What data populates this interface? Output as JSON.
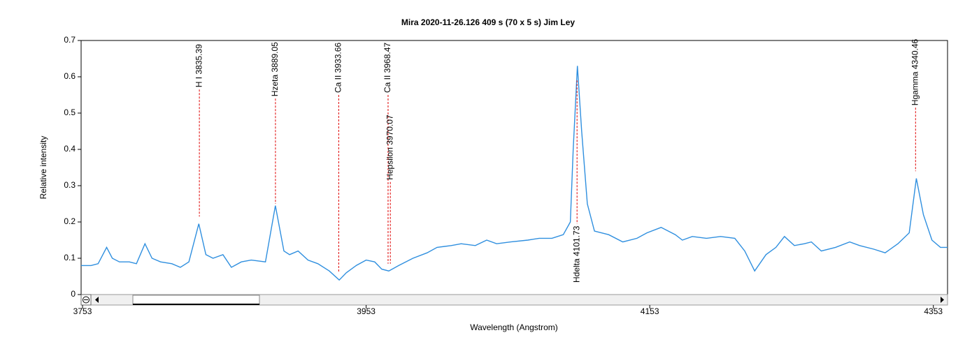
{
  "chart_data": {
    "type": "line",
    "title": "Mira   2020-11-26.126   409 s (70 x 5 s)   Jim Ley",
    "x_label": "Wavelength (Angstrom)",
    "y_label": "Relative intensity",
    "x": [
      3752,
      3759,
      3764,
      3770,
      3774,
      3779,
      3786,
      3791,
      3797,
      3802,
      3808,
      3816,
      3822,
      3828,
      3835,
      3840,
      3845,
      3852,
      3858,
      3865,
      3872,
      3882,
      3889,
      3895,
      3899,
      3905,
      3912,
      3919,
      3927,
      3934,
      3939,
      3946,
      3953,
      3959,
      3964,
      3969,
      3976,
      3986,
      3996,
      4003,
      4013,
      4020,
      4030,
      4038,
      4045,
      4055,
      4067,
      4075,
      4084,
      4092,
      4097,
      4099,
      4102,
      4105,
      4109,
      4114,
      4124,
      4134,
      4144,
      4151,
      4161,
      4171,
      4176,
      4183,
      4193,
      4203,
      4213,
      4220,
      4227,
      4235,
      4242,
      4248,
      4255,
      4262,
      4267,
      4274,
      4284,
      4294,
      4301,
      4311,
      4319,
      4328,
      4336,
      4341,
      4346,
      4352,
      4358,
      4363
    ],
    "series": [
      {
        "color": "#2f8fdf",
        "values": [
          0.08,
          0.08,
          0.085,
          0.13,
          0.1,
          0.09,
          0.09,
          0.085,
          0.14,
          0.1,
          0.09,
          0.085,
          0.075,
          0.09,
          0.195,
          0.11,
          0.1,
          0.11,
          0.075,
          0.09,
          0.095,
          0.09,
          0.245,
          0.12,
          0.11,
          0.12,
          0.095,
          0.085,
          0.065,
          0.04,
          0.06,
          0.08,
          0.095,
          0.09,
          0.07,
          0.065,
          0.08,
          0.1,
          0.115,
          0.13,
          0.135,
          0.14,
          0.135,
          0.15,
          0.14,
          0.145,
          0.15,
          0.155,
          0.155,
          0.165,
          0.2,
          0.4,
          0.63,
          0.45,
          0.25,
          0.175,
          0.165,
          0.145,
          0.155,
          0.17,
          0.185,
          0.165,
          0.15,
          0.16,
          0.155,
          0.16,
          0.155,
          0.12,
          0.065,
          0.11,
          0.13,
          0.16,
          0.135,
          0.14,
          0.145,
          0.12,
          0.13,
          0.145,
          0.135,
          0.125,
          0.115,
          0.14,
          0.17,
          0.32,
          0.22,
          0.15,
          0.13,
          0.13
        ]
      }
    ],
    "annotations": [
      {
        "label": "H I 3835.39",
        "x": 3835.39,
        "y_top": 0.565,
        "y_bottom": 0.215,
        "label_side": "above"
      },
      {
        "label": "Hzeta 3889.05",
        "x": 3889.05,
        "y_top": 0.54,
        "y_bottom": 0.25,
        "label_side": "above"
      },
      {
        "label": "Ca II 3933.66",
        "x": 3933.66,
        "y_top": 0.55,
        "y_bottom": 0.06,
        "label_side": "above"
      },
      {
        "label": "Ca II 3968.47",
        "x": 3968.47,
        "y_top": 0.55,
        "y_bottom": 0.085,
        "label_side": "above"
      },
      {
        "label": "Hepsilon 3970.07",
        "x": 3970.07,
        "y_top": 0.31,
        "y_bottom": 0.085,
        "label_side": "above"
      },
      {
        "label": "Hdelta 4101.73",
        "x": 4101.73,
        "y_top": 0.59,
        "y_bottom": 0.195,
        "label_side": "below"
      },
      {
        "label": "Hgamma 4340.46",
        "x": 4340.46,
        "y_top": 0.515,
        "y_bottom": 0.34,
        "label_side": "above"
      }
    ],
    "annotation_color": "#e00000",
    "xlim": [
      3752,
      4363
    ],
    "ylim": [
      0,
      0.7
    ],
    "xticks": [
      3753,
      3953,
      4153,
      4353
    ],
    "yticks": [
      0,
      0.1,
      0.2,
      0.3,
      0.4,
      0.5,
      0.6,
      0.7
    ]
  }
}
